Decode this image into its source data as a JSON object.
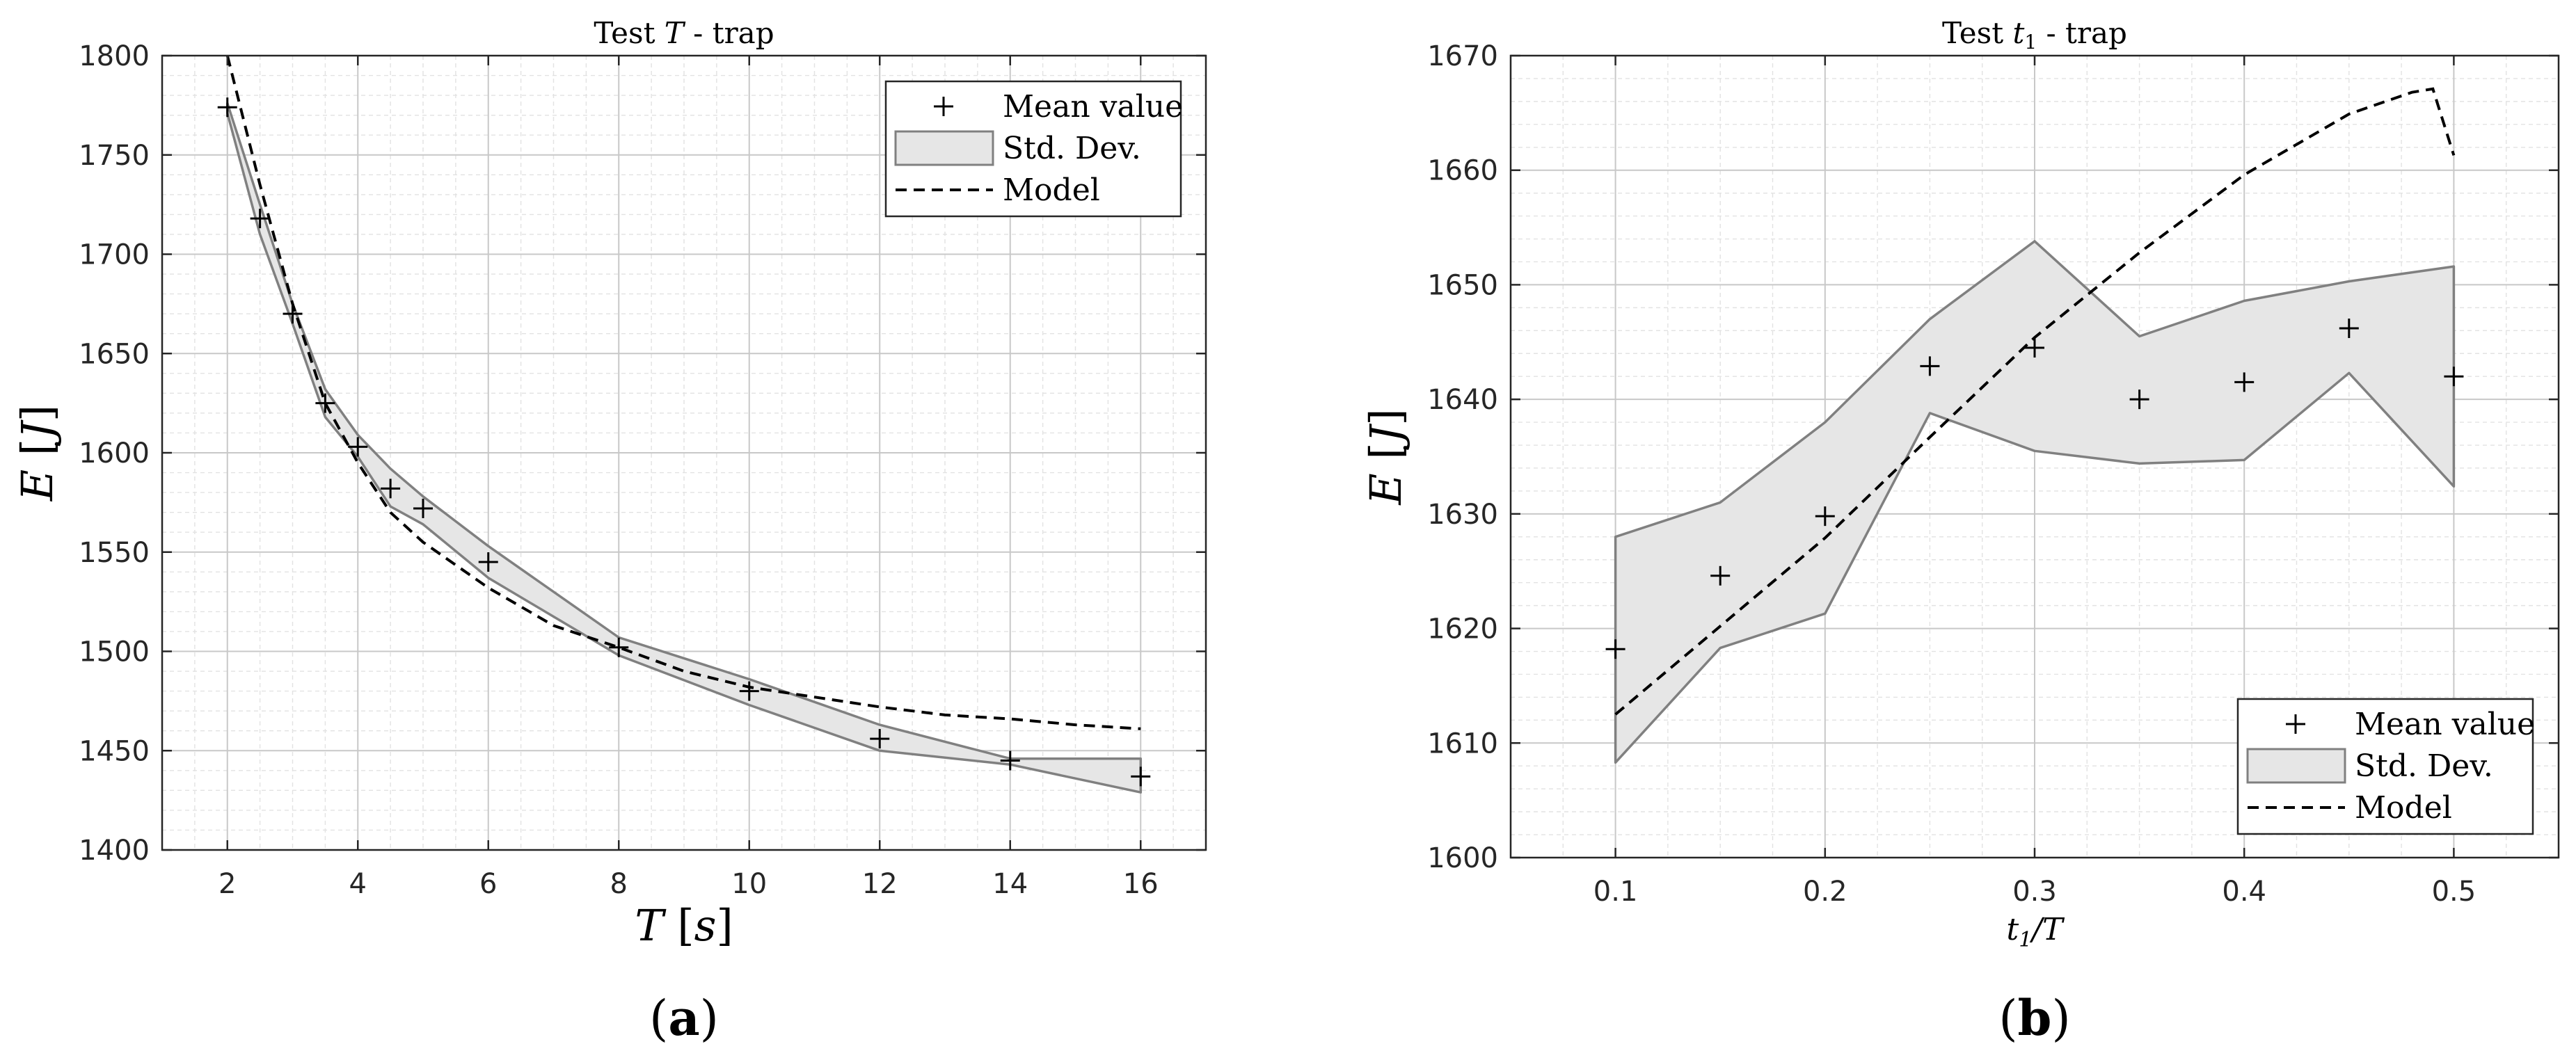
{
  "chart_data": [
    {
      "type": "line",
      "panel_label": "(a)",
      "title": "Test T - trap",
      "xlabel": "T [s]",
      "ylabel": "E [J]",
      "xlim": [
        1,
        17
      ],
      "ylim": [
        1400,
        1800
      ],
      "xticks": [
        2,
        4,
        6,
        8,
        10,
        12,
        14,
        16
      ],
      "yticks": [
        1400,
        1450,
        1500,
        1550,
        1600,
        1650,
        1700,
        1750,
        1800
      ],
      "grid": true,
      "minor_grid": true,
      "legend_position": "top-right",
      "legend": [
        "Mean value",
        "Std. Dev.",
        "Model"
      ],
      "series": [
        {
          "name": "Mean value",
          "kind": "marker",
          "x": [
            2,
            2.5,
            3,
            3.5,
            4,
            4.5,
            5,
            6,
            8,
            10,
            12,
            14,
            16
          ],
          "y": [
            1774,
            1718,
            1670,
            1625,
            1603,
            1582,
            1572,
            1545,
            1502,
            1480,
            1456,
            1445,
            1437
          ]
        },
        {
          "name": "Std. Dev.",
          "kind": "band",
          "x": [
            2,
            2.5,
            3,
            3.5,
            4,
            4.5,
            5,
            6,
            8,
            10,
            12,
            14,
            16
          ],
          "upper": [
            1776,
            1725,
            1675,
            1632,
            1609,
            1592,
            1578,
            1553,
            1507,
            1486,
            1463,
            1446,
            1446
          ],
          "lower": [
            1771,
            1710,
            1665,
            1618,
            1598,
            1573,
            1564,
            1537,
            1498,
            1473,
            1450,
            1443,
            1429
          ]
        },
        {
          "name": "Model",
          "kind": "dashed",
          "x": [
            2,
            2.5,
            3,
            3.5,
            4,
            4.5,
            5,
            6,
            7,
            8,
            9,
            10,
            11,
            12,
            13,
            14,
            15,
            16
          ],
          "y": [
            1800,
            1735,
            1675,
            1625,
            1595,
            1570,
            1555,
            1532,
            1513,
            1502,
            1490,
            1482,
            1477,
            1472,
            1468,
            1466,
            1463,
            1461
          ]
        }
      ],
      "colors": {
        "band_fill": "#e6e6e6",
        "band_edge": "#808080",
        "line": "#000000"
      }
    },
    {
      "type": "line",
      "panel_label": "(b)",
      "title": "Test t1 - trap",
      "xlabel": "t1/T",
      "ylabel": "E [J]",
      "xlim": [
        0.05,
        0.55
      ],
      "ylim": [
        1600,
        1670
      ],
      "xticks": [
        0.1,
        0.2,
        0.3,
        0.4,
        0.5
      ],
      "yticks": [
        1600,
        1610,
        1620,
        1630,
        1640,
        1650,
        1660,
        1670
      ],
      "grid": true,
      "minor_grid": true,
      "legend_position": "bottom-right",
      "legend": [
        "Mean value",
        "Std. Dev.",
        "Model"
      ],
      "series": [
        {
          "name": "Mean value",
          "kind": "marker",
          "x": [
            0.1,
            0.15,
            0.2,
            0.25,
            0.3,
            0.35,
            0.4,
            0.45,
            0.5
          ],
          "y": [
            1618.2,
            1624.6,
            1629.8,
            1642.9,
            1644.5,
            1640.0,
            1641.5,
            1646.2,
            1642.0
          ]
        },
        {
          "name": "Std. Dev.",
          "kind": "band",
          "x": [
            0.1,
            0.15,
            0.2,
            0.25,
            0.3,
            0.35,
            0.4,
            0.45,
            0.5
          ],
          "upper": [
            1628.0,
            1631.0,
            1638.0,
            1647.0,
            1653.8,
            1645.5,
            1648.6,
            1650.3,
            1651.6
          ],
          "lower": [
            1608.3,
            1618.3,
            1621.3,
            1638.8,
            1635.5,
            1634.4,
            1634.7,
            1642.3,
            1632.4
          ]
        },
        {
          "name": "Model",
          "kind": "dashed",
          "x": [
            0.1,
            0.15,
            0.2,
            0.25,
            0.3,
            0.35,
            0.4,
            0.45,
            0.48,
            0.49,
            0.5
          ],
          "y": [
            1612.5,
            1620.2,
            1627.9,
            1636.7,
            1645.4,
            1652.8,
            1659.6,
            1664.9,
            1666.8,
            1667.1,
            1661.3
          ]
        }
      ],
      "colors": {
        "band_fill": "#e6e6e6",
        "band_edge": "#808080",
        "line": "#000000"
      }
    }
  ]
}
